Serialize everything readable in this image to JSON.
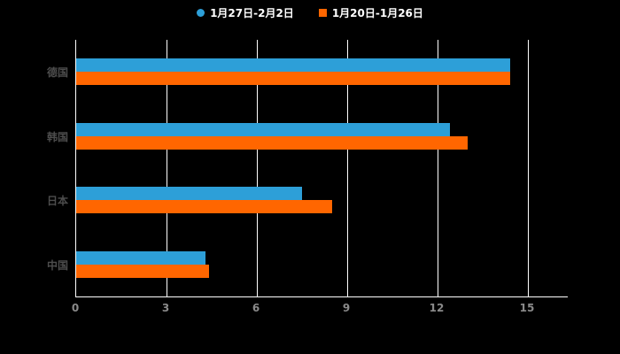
{
  "chart_data": {
    "type": "bar",
    "orientation": "horizontal",
    "title": "",
    "categories": [
      "德国",
      "韩国",
      "日本",
      "中国"
    ],
    "series": [
      {
        "name": "1月27日-2月2日",
        "color": "#2d9fd8",
        "marker": "circle",
        "values": [
          14.4,
          12.4,
          7.5,
          4.3
        ]
      },
      {
        "name": "1月20日-1月26日",
        "color": "#ff6600",
        "marker": "square",
        "values": [
          14.4,
          13.0,
          8.5,
          4.4
        ]
      }
    ],
    "xlim": [
      0,
      15
    ],
    "xticks": [
      0,
      3,
      6,
      9,
      12,
      15
    ],
    "grid": "vertical-white-on-black",
    "legend_position": "top-center",
    "background": "#000000"
  }
}
